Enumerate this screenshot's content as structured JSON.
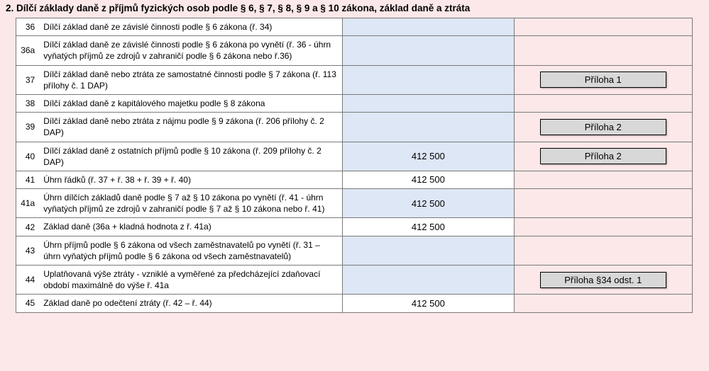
{
  "section": {
    "title": "2. Dílčí základy daně z příjmů fyzických osob podle § 6, § 7, § 8, § 9 a § 10 zákona, základ daně a ztráta"
  },
  "rows": [
    {
      "num": "36",
      "label": "Dílčí základ daně ze závislé činnosti podle § 6 zákona (ř. 34)",
      "value": "",
      "valueBg": "blue",
      "button": ""
    },
    {
      "num": "36a",
      "label": "Dílčí základ daně ze závislé činnosti podle § 6 zákona po vynětí (ř. 36 - úhrn vyňatých příjmů ze zdrojů v zahraničí podle § 6 zákona nebo ř.36)",
      "value": "",
      "valueBg": "blue",
      "button": ""
    },
    {
      "num": "37",
      "label": "Dílčí základ daně nebo ztráta ze samostatné  činnosti podle § 7 zákona (ř. 113 přílohy č. 1 DAP)",
      "value": "",
      "valueBg": "blue",
      "button": "Příloha 1"
    },
    {
      "num": "38",
      "label": "Dílčí základ daně z kapitálového majetku podle § 8 zákona",
      "value": "",
      "valueBg": "blue",
      "button": ""
    },
    {
      "num": "39",
      "label": "Dílčí základ daně nebo ztráta z nájmu podle § 9 zákona (ř. 206 přílohy č. 2 DAP)",
      "value": "",
      "valueBg": "blue",
      "button": "Příloha 2"
    },
    {
      "num": "40",
      "label": "Dílčí základ daně z ostatních příjmů podle § 10 zákona (ř. 209 přílohy č. 2 DAP)",
      "value": "412 500",
      "valueBg": "blue",
      "button": "Příloha 2"
    },
    {
      "num": "41",
      "label": "Úhrn řádků (ř. 37 + ř. 38 + ř. 39 + ř. 40)",
      "value": "412 500",
      "valueBg": "white",
      "button": ""
    },
    {
      "num": "41a",
      "label": "Úhrn dílčích základů daně podle § 7 až § 10 zákona po vynětí (ř. 41 - úhrn vyňatých příjmů ze zdrojů v zahraničí podle § 7 až § 10 zákona nebo ř. 41)",
      "value": "412 500",
      "valueBg": "blue",
      "button": ""
    },
    {
      "num": "42",
      "label": " Základ daně\n(36a + kladná hodnota z ř. 41a)",
      "value": "412 500",
      "valueBg": "white",
      "button": ""
    },
    {
      "num": "43",
      "label": "Úhrn příjmů podle § 6 zákona od všech zaměstnavatelů po vynětí (ř. 31 – úhrn vyňatých příjmů podle § 6 zákona od všech zaměstnavatelů)",
      "value": "",
      "valueBg": "blue",
      "button": ""
    },
    {
      "num": "44",
      "label": "Uplatňovaná výše ztráty - vzniklé a vyměřené za předcházející zdaňovací období maximálně do výše ř. 41a",
      "value": "",
      "valueBg": "blue",
      "button": "Příloha §34 odst. 1"
    },
    {
      "num": "45",
      "label": " Základ daně po odečtení ztráty (ř. 42 – ř. 44)",
      "value": "412 500",
      "valueBg": "white",
      "button": ""
    }
  ],
  "colors": {
    "pageBg": "#fce8e8",
    "blueCell": "#dde7f5",
    "buttonBg": "#d8d8d8",
    "border": "#7a7a7a"
  }
}
